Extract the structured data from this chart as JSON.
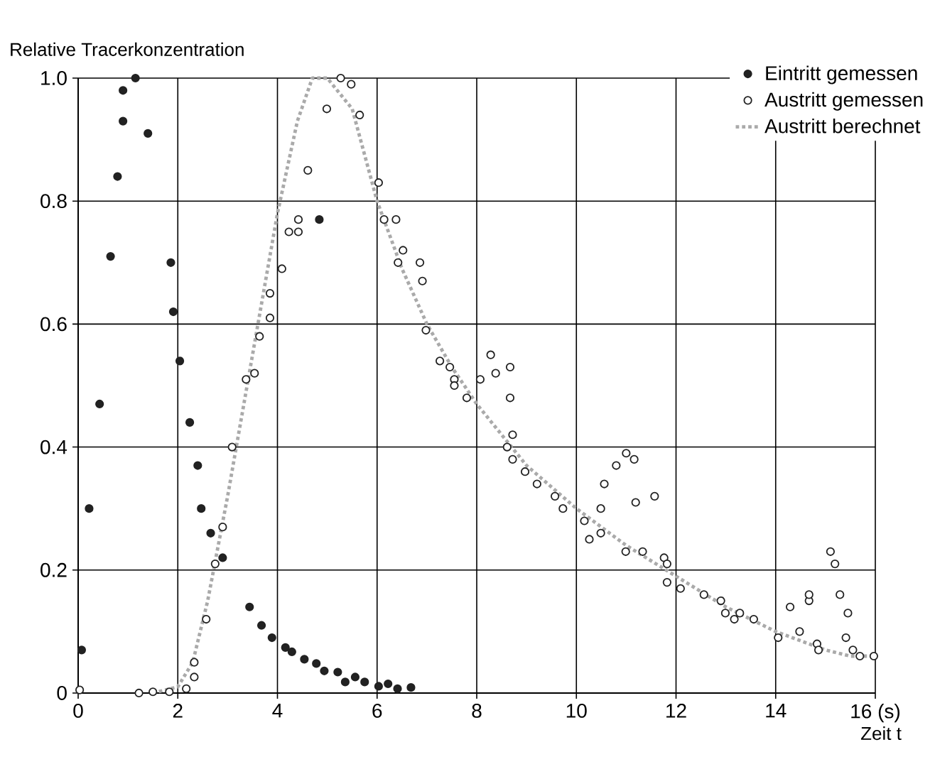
{
  "chart_data": {
    "type": "scatter",
    "ylabel": "Relative Tracerkonzentration",
    "xlabel": "Zeit t",
    "xlim": [
      0,
      16
    ],
    "ylim": [
      0,
      1
    ],
    "xticks": [
      0,
      2,
      4,
      6,
      8,
      10,
      12,
      14,
      {
        "value": 16,
        "label": "16 (s)"
      }
    ],
    "yticks": [
      0,
      0.2,
      0.4,
      0.6,
      0.8,
      {
        "value": 1,
        "label": "1.0"
      }
    ],
    "grid": true,
    "legend": "top right",
    "series": [
      {
        "name": "Eintritt gemessen",
        "marker": "circle",
        "color": "#222222",
        "x": [
          0.07,
          0.22,
          0.43,
          0.65,
          0.79,
          0.9,
          0.9,
          1.15,
          1.4,
          1.86,
          1.91,
          2.04,
          2.24,
          2.4,
          2.47,
          2.66,
          2.9,
          3.44,
          3.68,
          3.89,
          4.16,
          4.29,
          4.54,
          4.78,
          4.84,
          4.94,
          5.21,
          5.36,
          5.56,
          5.75,
          6.03,
          6.22,
          6.41,
          6.68
        ],
        "values": [
          0.07,
          0.3,
          0.47,
          0.71,
          0.84,
          0.93,
          0.98,
          1.0,
          0.91,
          0.7,
          0.62,
          0.54,
          0.44,
          0.37,
          0.3,
          0.26,
          0.22,
          0.14,
          0.11,
          0.09,
          0.074,
          0.067,
          0.055,
          0.048,
          0.77,
          0.036,
          0.034,
          0.018,
          0.026,
          0.018,
          0.011,
          0.015,
          0.007,
          0.009
        ]
      },
      {
        "name": "Austritt gemessen",
        "marker": "circle",
        "color": "#ffffff",
        "x": [
          0.03,
          1.22,
          1.5,
          1.83,
          2.17,
          2.33,
          2.33,
          2.57,
          2.75,
          2.9,
          3.09,
          3.37,
          3.54,
          3.64,
          3.85,
          3.85,
          4.09,
          4.23,
          4.42,
          4.42,
          4.61,
          4.99,
          5.27,
          5.48,
          5.65,
          6.03,
          6.14,
          6.38,
          6.52,
          6.42,
          6.86,
          6.91,
          6.98,
          7.26,
          7.46,
          7.55,
          7.55,
          7.8,
          8.07,
          8.28,
          8.38,
          8.67,
          8.67,
          8.72,
          8.61,
          8.72,
          8.97,
          9.21,
          9.57,
          9.73,
          10.16,
          10.26,
          10.49,
          10.49,
          10.56,
          10.8,
          11.0,
          11.16,
          11.19,
          10.99,
          11.33,
          11.57,
          11.76,
          11.82,
          11.82,
          12.09,
          12.56,
          12.9,
          12.99,
          13.17,
          13.28,
          13.56,
          14.05,
          14.29,
          14.48,
          14.67,
          14.67,
          14.83,
          14.86,
          15.1,
          15.19,
          15.29,
          15.45,
          15.41,
          15.55,
          15.69,
          15.97
        ],
        "values": [
          0.005,
          0,
          0.002,
          0.002,
          0.007,
          0.026,
          0.05,
          0.12,
          0.21,
          0.27,
          0.4,
          0.51,
          0.52,
          0.58,
          0.61,
          0.65,
          0.69,
          0.75,
          0.75,
          0.77,
          0.85,
          0.95,
          1.0,
          0.99,
          0.94,
          0.83,
          0.77,
          0.77,
          0.72,
          0.7,
          0.7,
          0.67,
          0.59,
          0.54,
          0.53,
          0.51,
          0.5,
          0.48,
          0.51,
          0.55,
          0.52,
          0.53,
          0.48,
          0.42,
          0.4,
          0.38,
          0.36,
          0.34,
          0.32,
          0.3,
          0.28,
          0.25,
          0.26,
          0.3,
          0.34,
          0.37,
          0.39,
          0.38,
          0.31,
          0.23,
          0.23,
          0.32,
          0.22,
          0.21,
          0.18,
          0.17,
          0.16,
          0.15,
          0.13,
          0.12,
          0.13,
          0.12,
          0.09,
          0.14,
          0.1,
          0.15,
          0.16,
          0.08,
          0.07,
          0.23,
          0.21,
          0.16,
          0.13,
          0.09,
          0.07,
          0.06,
          0.06
        ]
      },
      {
        "name": "Austritt berechnet",
        "type": "line",
        "marker": "none",
        "line_style": "dotted",
        "color": "#aaaaaa",
        "x": [
          1.5,
          2.0,
          2.3,
          2.6,
          3.0,
          3.5,
          4.0,
          4.4,
          4.7,
          5.0,
          5.5,
          6.0,
          6.5,
          7.0,
          7.5,
          8.0,
          8.5,
          9.0,
          10,
          11,
          12,
          13,
          14,
          15,
          15.5,
          16
        ],
        "values": [
          0,
          0.01,
          0.05,
          0.15,
          0.32,
          0.55,
          0.78,
          0.93,
          1.0,
          1.0,
          0.95,
          0.8,
          0.69,
          0.6,
          0.53,
          0.47,
          0.42,
          0.37,
          0.3,
          0.24,
          0.19,
          0.14,
          0.1,
          0.07,
          0.06,
          0.06
        ]
      }
    ]
  }
}
